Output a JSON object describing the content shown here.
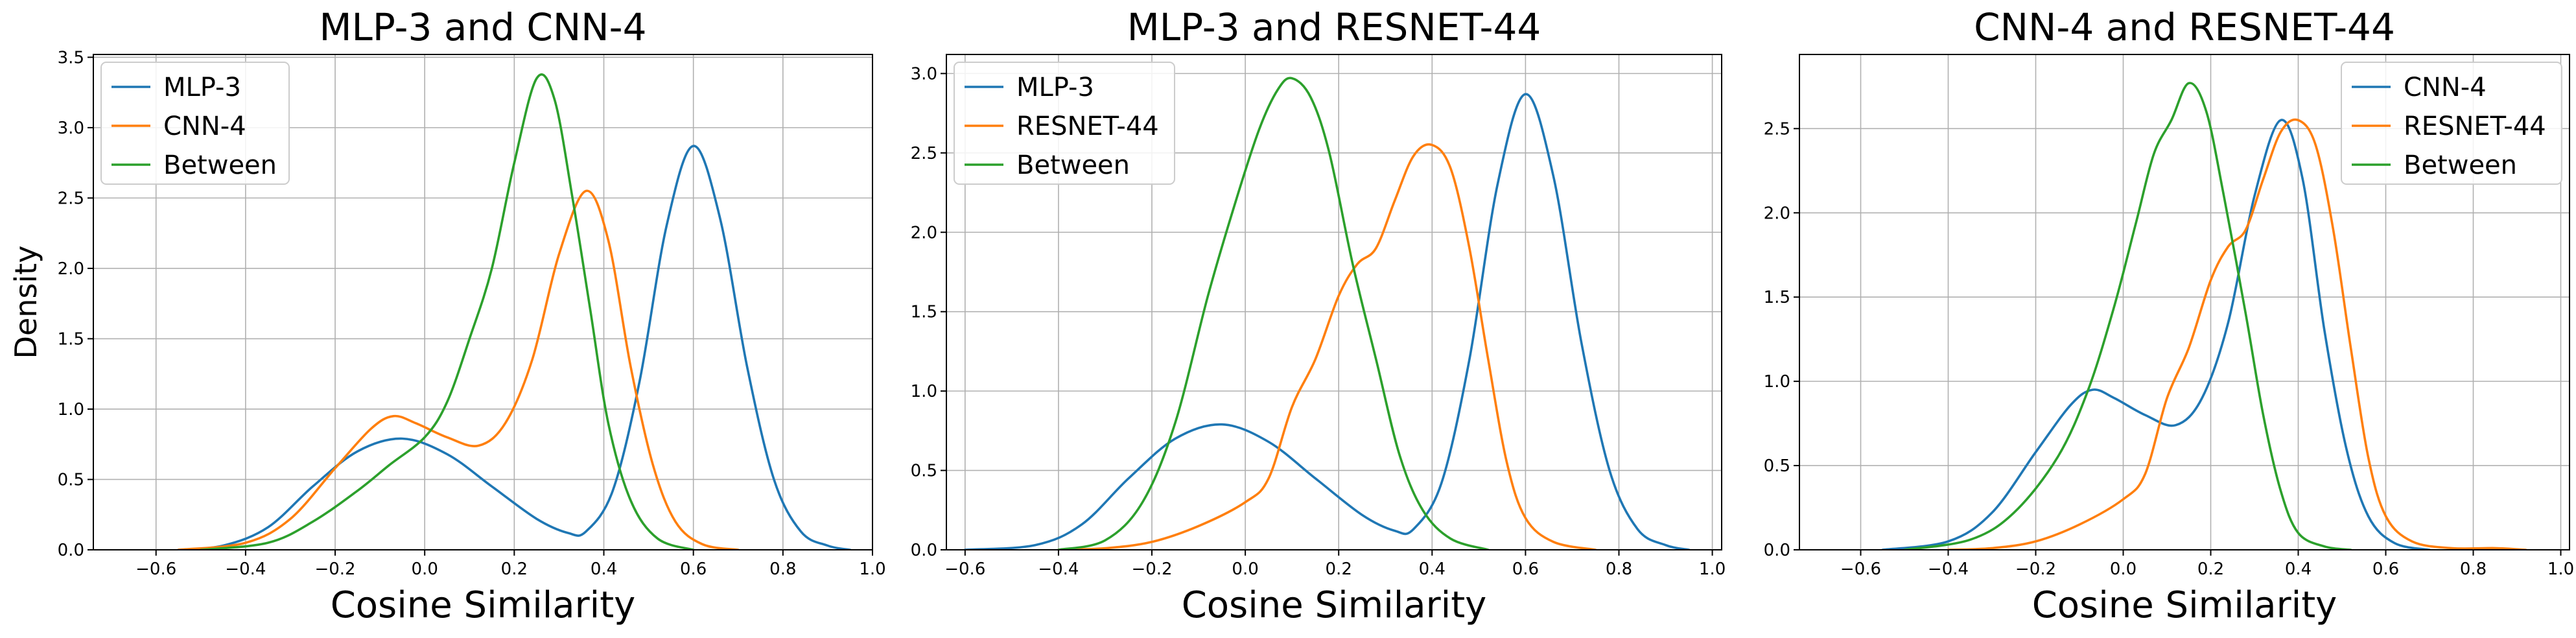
{
  "chart_data": [
    {
      "type": "line",
      "title": "MLP-3 and CNN-4",
      "xlabel": "Cosine Similarity",
      "ylabel": "Density",
      "xlim": [
        -0.74,
        1.0
      ],
      "ylim": [
        0,
        3.52
      ],
      "xticks": [
        -0.6,
        -0.4,
        -0.2,
        0.0,
        0.2,
        0.4,
        0.6,
        0.8,
        1.0
      ],
      "xtick_labels": [
        "−0.6",
        "−0.4",
        "−0.2",
        "0.0",
        "0.2",
        "0.4",
        "0.6",
        "0.8",
        "1.0"
      ],
      "yticks": [
        0,
        0.5,
        1.0,
        1.5,
        2.0,
        2.5,
        3.0,
        3.5
      ],
      "ytick_labels": [
        "0.0",
        "0.5",
        "1.0",
        "1.5",
        "2.0",
        "2.5",
        "3.0",
        "3.5"
      ],
      "grid": true,
      "legend_position": "top-left",
      "series": [
        {
          "name": "MLP-3",
          "color": "#1f77b4",
          "points": [
            [
              -0.55,
              0.0
            ],
            [
              -0.45,
              0.03
            ],
            [
              -0.35,
              0.16
            ],
            [
              -0.25,
              0.45
            ],
            [
              -0.15,
              0.7
            ],
            [
              -0.05,
              0.79
            ],
            [
              0.05,
              0.68
            ],
            [
              0.15,
              0.45
            ],
            [
              0.25,
              0.22
            ],
            [
              0.32,
              0.12
            ],
            [
              0.36,
              0.13
            ],
            [
              0.42,
              0.42
            ],
            [
              0.48,
              1.2
            ],
            [
              0.54,
              2.3
            ],
            [
              0.6,
              2.87
            ],
            [
              0.66,
              2.35
            ],
            [
              0.72,
              1.3
            ],
            [
              0.78,
              0.5
            ],
            [
              0.84,
              0.13
            ],
            [
              0.9,
              0.03
            ],
            [
              0.95,
              0.0
            ]
          ]
        },
        {
          "name": "CNN-4",
          "color": "#ff7f0e",
          "points": [
            [
              -0.55,
              0.0
            ],
            [
              -0.4,
              0.05
            ],
            [
              -0.3,
              0.22
            ],
            [
              -0.2,
              0.58
            ],
            [
              -0.12,
              0.86
            ],
            [
              -0.07,
              0.95
            ],
            [
              -0.02,
              0.9
            ],
            [
              0.05,
              0.8
            ],
            [
              0.12,
              0.74
            ],
            [
              0.18,
              0.9
            ],
            [
              0.24,
              1.35
            ],
            [
              0.3,
              2.1
            ],
            [
              0.36,
              2.55
            ],
            [
              0.41,
              2.2
            ],
            [
              0.46,
              1.3
            ],
            [
              0.51,
              0.6
            ],
            [
              0.56,
              0.2
            ],
            [
              0.62,
              0.04
            ],
            [
              0.7,
              0.0
            ]
          ]
        },
        {
          "name": "Between",
          "color": "#2ca02c",
          "points": [
            [
              -0.5,
              0.0
            ],
            [
              -0.35,
              0.05
            ],
            [
              -0.25,
              0.2
            ],
            [
              -0.15,
              0.42
            ],
            [
              -0.08,
              0.6
            ],
            [
              0.0,
              0.8
            ],
            [
              0.05,
              1.05
            ],
            [
              0.1,
              1.5
            ],
            [
              0.15,
              2.0
            ],
            [
              0.2,
              2.75
            ],
            [
              0.25,
              3.35
            ],
            [
              0.29,
              3.2
            ],
            [
              0.33,
              2.5
            ],
            [
              0.37,
              1.7
            ],
            [
              0.41,
              0.9
            ],
            [
              0.46,
              0.35
            ],
            [
              0.52,
              0.08
            ],
            [
              0.6,
              0.0
            ]
          ]
        }
      ]
    },
    {
      "type": "line",
      "title": "MLP-3 and RESNET-44",
      "xlabel": "Cosine Similarity",
      "ylabel": "",
      "xlim": [
        -0.64,
        1.02
      ],
      "ylim": [
        0,
        3.12
      ],
      "xticks": [
        -0.6,
        -0.4,
        -0.2,
        0.0,
        0.2,
        0.4,
        0.6,
        0.8,
        1.0
      ],
      "xtick_labels": [
        "−0.6",
        "−0.4",
        "−0.2",
        "0.0",
        "0.2",
        "0.4",
        "0.6",
        "0.8",
        "1.0"
      ],
      "yticks": [
        0,
        0.5,
        1.0,
        1.5,
        2.0,
        2.5,
        3.0
      ],
      "ytick_labels": [
        "0.0",
        "0.5",
        "1.0",
        "1.5",
        "2.0",
        "2.5",
        "3.0"
      ],
      "grid": true,
      "legend_position": "top-left",
      "series": [
        {
          "name": "MLP-3",
          "color": "#1f77b4",
          "points": [
            [
              -0.6,
              0.0
            ],
            [
              -0.45,
              0.03
            ],
            [
              -0.35,
              0.16
            ],
            [
              -0.25,
              0.45
            ],
            [
              -0.15,
              0.7
            ],
            [
              -0.05,
              0.79
            ],
            [
              0.05,
              0.68
            ],
            [
              0.15,
              0.45
            ],
            [
              0.25,
              0.22
            ],
            [
              0.32,
              0.12
            ],
            [
              0.36,
              0.13
            ],
            [
              0.42,
              0.42
            ],
            [
              0.48,
              1.2
            ],
            [
              0.54,
              2.3
            ],
            [
              0.6,
              2.87
            ],
            [
              0.66,
              2.35
            ],
            [
              0.72,
              1.3
            ],
            [
              0.78,
              0.5
            ],
            [
              0.84,
              0.13
            ],
            [
              0.9,
              0.03
            ],
            [
              0.95,
              0.0
            ]
          ]
        },
        {
          "name": "RESNET-44",
          "color": "#ff7f0e",
          "points": [
            [
              -0.4,
              0.0
            ],
            [
              -0.3,
              0.01
            ],
            [
              -0.2,
              0.05
            ],
            [
              -0.1,
              0.15
            ],
            [
              0.0,
              0.3
            ],
            [
              0.05,
              0.45
            ],
            [
              0.1,
              0.9
            ],
            [
              0.15,
              1.2
            ],
            [
              0.2,
              1.6
            ],
            [
              0.24,
              1.8
            ],
            [
              0.28,
              1.9
            ],
            [
              0.32,
              2.2
            ],
            [
              0.36,
              2.48
            ],
            [
              0.4,
              2.55
            ],
            [
              0.44,
              2.4
            ],
            [
              0.48,
              1.9
            ],
            [
              0.52,
              1.2
            ],
            [
              0.56,
              0.55
            ],
            [
              0.6,
              0.2
            ],
            [
              0.66,
              0.05
            ],
            [
              0.75,
              0.0
            ]
          ]
        },
        {
          "name": "Between",
          "color": "#2ca02c",
          "points": [
            [
              -0.4,
              0.0
            ],
            [
              -0.3,
              0.06
            ],
            [
              -0.22,
              0.3
            ],
            [
              -0.15,
              0.8
            ],
            [
              -0.08,
              1.6
            ],
            [
              -0.02,
              2.2
            ],
            [
              0.03,
              2.65
            ],
            [
              0.07,
              2.9
            ],
            [
              0.1,
              2.97
            ],
            [
              0.14,
              2.85
            ],
            [
              0.18,
              2.5
            ],
            [
              0.23,
              1.8
            ],
            [
              0.28,
              1.2
            ],
            [
              0.33,
              0.6
            ],
            [
              0.38,
              0.25
            ],
            [
              0.44,
              0.07
            ],
            [
              0.52,
              0.0
            ]
          ]
        }
      ]
    },
    {
      "type": "line",
      "title": "CNN-4 and RESNET-44",
      "xlabel": "Cosine Similarity",
      "ylabel": "",
      "xlim": [
        -0.74,
        1.02
      ],
      "ylim": [
        0,
        2.94
      ],
      "xticks": [
        -0.6,
        -0.4,
        -0.2,
        0.0,
        0.2,
        0.4,
        0.6,
        0.8,
        1.0
      ],
      "xtick_labels": [
        "−0.6",
        "−0.4",
        "−0.2",
        "0.0",
        "0.2",
        "0.4",
        "0.6",
        "0.8",
        "1.0"
      ],
      "yticks": [
        0,
        0.5,
        1.0,
        1.5,
        2.0,
        2.5
      ],
      "ytick_labels": [
        "0.0",
        "0.5",
        "1.0",
        "1.5",
        "2.0",
        "2.5"
      ],
      "grid": true,
      "legend_position": "top-right",
      "series": [
        {
          "name": "CNN-4",
          "color": "#1f77b4",
          "points": [
            [
              -0.55,
              0.0
            ],
            [
              -0.4,
              0.05
            ],
            [
              -0.3,
              0.22
            ],
            [
              -0.2,
              0.58
            ],
            [
              -0.12,
              0.86
            ],
            [
              -0.07,
              0.95
            ],
            [
              -0.02,
              0.9
            ],
            [
              0.05,
              0.8
            ],
            [
              0.12,
              0.74
            ],
            [
              0.18,
              0.9
            ],
            [
              0.24,
              1.35
            ],
            [
              0.3,
              2.1
            ],
            [
              0.36,
              2.55
            ],
            [
              0.41,
              2.2
            ],
            [
              0.46,
              1.3
            ],
            [
              0.51,
              0.6
            ],
            [
              0.56,
              0.2
            ],
            [
              0.62,
              0.04
            ],
            [
              0.7,
              0.0
            ]
          ]
        },
        {
          "name": "RESNET-44",
          "color": "#ff7f0e",
          "points": [
            [
              -0.4,
              0.0
            ],
            [
              -0.3,
              0.01
            ],
            [
              -0.2,
              0.05
            ],
            [
              -0.1,
              0.15
            ],
            [
              0.0,
              0.3
            ],
            [
              0.05,
              0.45
            ],
            [
              0.1,
              0.9
            ],
            [
              0.15,
              1.2
            ],
            [
              0.2,
              1.6
            ],
            [
              0.24,
              1.8
            ],
            [
              0.28,
              1.9
            ],
            [
              0.32,
              2.2
            ],
            [
              0.36,
              2.48
            ],
            [
              0.4,
              2.55
            ],
            [
              0.44,
              2.4
            ],
            [
              0.48,
              1.9
            ],
            [
              0.52,
              1.2
            ],
            [
              0.56,
              0.55
            ],
            [
              0.6,
              0.2
            ],
            [
              0.66,
              0.05
            ],
            [
              0.75,
              0.01
            ],
            [
              0.85,
              0.01
            ],
            [
              0.92,
              0.0
            ]
          ]
        },
        {
          "name": "Between",
          "color": "#2ca02c",
          "points": [
            [
              -0.5,
              0.0
            ],
            [
              -0.35,
              0.06
            ],
            [
              -0.25,
              0.22
            ],
            [
              -0.15,
              0.55
            ],
            [
              -0.08,
              0.95
            ],
            [
              -0.02,
              1.45
            ],
            [
              0.03,
              1.95
            ],
            [
              0.07,
              2.35
            ],
            [
              0.11,
              2.55
            ],
            [
              0.15,
              2.77
            ],
            [
              0.19,
              2.6
            ],
            [
              0.23,
              2.1
            ],
            [
              0.28,
              1.4
            ],
            [
              0.32,
              0.8
            ],
            [
              0.36,
              0.35
            ],
            [
              0.4,
              0.1
            ],
            [
              0.46,
              0.02
            ],
            [
              0.52,
              0.0
            ]
          ]
        }
      ]
    }
  ]
}
